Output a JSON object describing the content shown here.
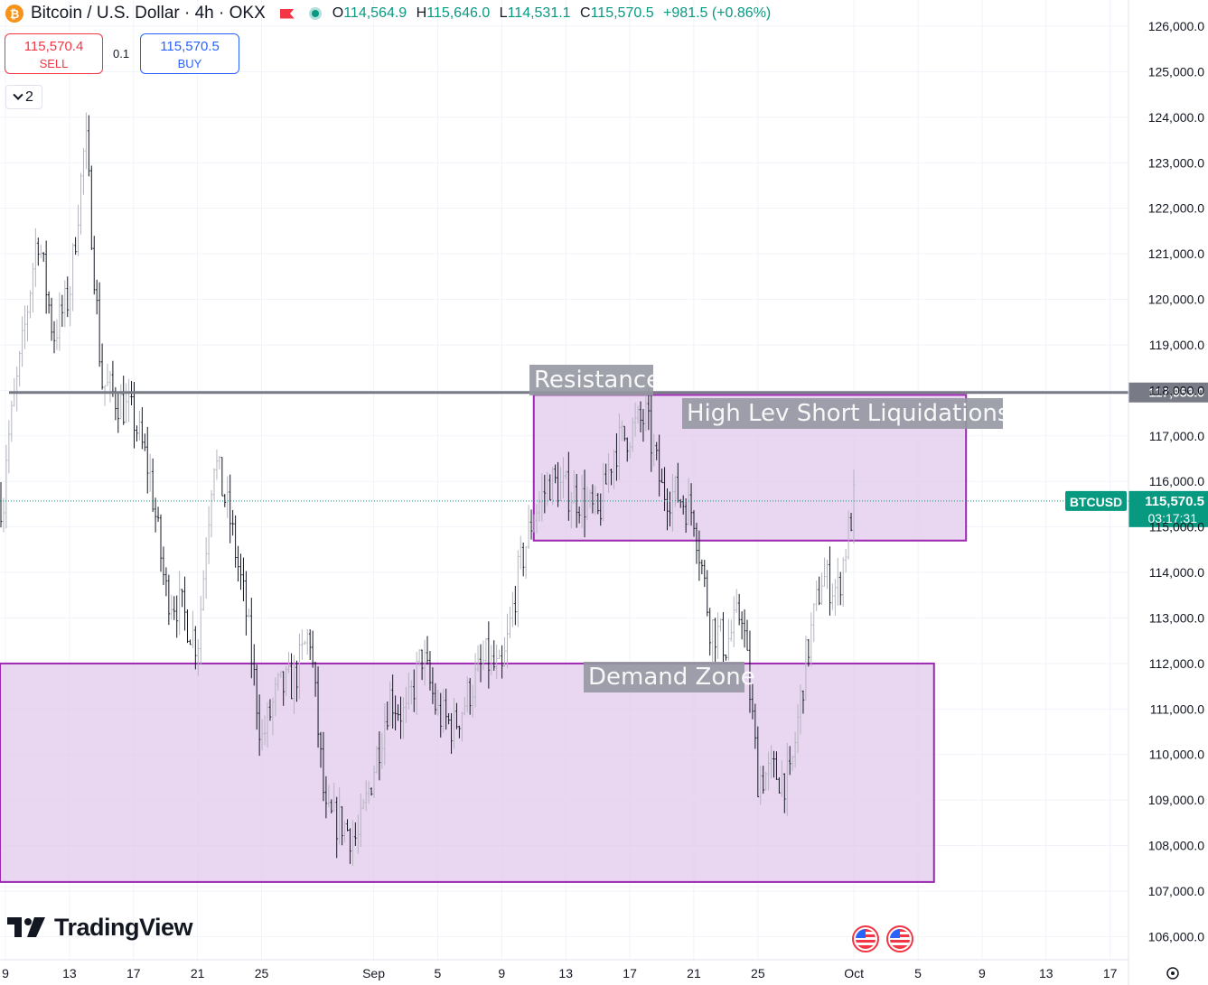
{
  "header": {
    "symbol_title": "Bitcoin / U.S. Dollar · 4h · OKX",
    "coin_symbol": "₿",
    "ohlc": {
      "open_label": "O",
      "open": "114,564.9",
      "high_label": "H",
      "high": "115,646.0",
      "low_label": "L",
      "low": "114,531.1",
      "close_label": "C",
      "close": "115,570.5",
      "change": "+981.5 (+0.86%)"
    }
  },
  "trade": {
    "sell_price": "115,570.4",
    "sell_label": "SELL",
    "spread": "0.1",
    "buy_price": "115,570.5",
    "buy_label": "BUY"
  },
  "collapse_count": "2",
  "branding": {
    "logo_text": "TradingView"
  },
  "colors": {
    "up": "#089981",
    "down": "#f23645",
    "zone_fill": "#e1c8ec",
    "zone_border": "#9c27b0",
    "accent": "#2962ff"
  },
  "icons": [
    "bitcoin-icon",
    "flag-icon",
    "market-status-icon",
    "chevron-down-icon",
    "tradingview-logo-icon",
    "us-flag-icon",
    "settings-icon"
  ],
  "chart_data": {
    "type": "candlestick",
    "symbol": "BTCUSD",
    "timeframe": "4h",
    "ylim": [
      105600,
      126300
    ],
    "yticks": [
      106000,
      107000,
      108000,
      109000,
      110000,
      111000,
      112000,
      113000,
      114000,
      115000,
      116000,
      117000,
      118000,
      119000,
      120000,
      121000,
      122000,
      123000,
      124000,
      125000,
      126000
    ],
    "ytick_labels": [
      "106,000.0",
      "107,000.0",
      "108,000.0",
      "109,000.0",
      "110,000.0",
      "111,000.0",
      "112,000.0",
      "113,000.0",
      "114,000.0",
      "115,000.0",
      "116,000.0",
      "117,000.0",
      "118,000.0",
      "119,000.0",
      "120,000.0",
      "121,000.0",
      "122,000.0",
      "123,000.0",
      "124,000.0",
      "125,000.0",
      "126,000.0"
    ],
    "xtick_labels": [
      "9",
      "13",
      "17",
      "21",
      "25",
      "Sep",
      "5",
      "9",
      "13",
      "17",
      "21",
      "25",
      "Oct",
      "5",
      "9",
      "13",
      "17"
    ],
    "price_path": [
      {
        "date": "2025-08-09",
        "price": 116500
      },
      {
        "date": "2025-08-10",
        "price": 118800
      },
      {
        "date": "2025-08-11",
        "price": 121500
      },
      {
        "date": "2025-08-12",
        "price": 119200
      },
      {
        "date": "2025-08-13",
        "price": 120100
      },
      {
        "date": "2025-08-14",
        "price": 123600
      },
      {
        "date": "2025-08-15",
        "price": 118200
      },
      {
        "date": "2025-08-16",
        "price": 117800
      },
      {
        "date": "2025-08-17",
        "price": 117400
      },
      {
        "date": "2025-08-18",
        "price": 116200
      },
      {
        "date": "2025-08-19",
        "price": 113600
      },
      {
        "date": "2025-08-20",
        "price": 113200
      },
      {
        "date": "2025-08-21",
        "price": 112400
      },
      {
        "date": "2025-08-22",
        "price": 116600
      },
      {
        "date": "2025-08-23",
        "price": 115200
      },
      {
        "date": "2025-08-24",
        "price": 113200
      },
      {
        "date": "2025-08-25",
        "price": 110300
      },
      {
        "date": "2025-08-26",
        "price": 111400
      },
      {
        "date": "2025-08-27",
        "price": 111600
      },
      {
        "date": "2025-08-28",
        "price": 112700
      },
      {
        "date": "2025-08-29",
        "price": 108600
      },
      {
        "date": "2025-08-30",
        "price": 108500
      },
      {
        "date": "2025-08-31",
        "price": 108100
      },
      {
        "date": "2025-09-01",
        "price": 109700
      },
      {
        "date": "2025-09-02",
        "price": 111300
      },
      {
        "date": "2025-09-03",
        "price": 110800
      },
      {
        "date": "2025-09-04",
        "price": 112200
      },
      {
        "date": "2025-09-05",
        "price": 110900
      },
      {
        "date": "2025-09-06",
        "price": 110600
      },
      {
        "date": "2025-09-07",
        "price": 111400
      },
      {
        "date": "2025-09-08",
        "price": 112100
      },
      {
        "date": "2025-09-09",
        "price": 111700
      },
      {
        "date": "2025-09-10",
        "price": 113900
      },
      {
        "date": "2025-09-11",
        "price": 115300
      },
      {
        "date": "2025-09-12",
        "price": 116000
      },
      {
        "date": "2025-09-13",
        "price": 115800
      },
      {
        "date": "2025-09-14",
        "price": 115600
      },
      {
        "date": "2025-09-15",
        "price": 115200
      },
      {
        "date": "2025-09-16",
        "price": 116700
      },
      {
        "date": "2025-09-17",
        "price": 117100
      },
      {
        "date": "2025-09-18",
        "price": 117400
      },
      {
        "date": "2025-09-19",
        "price": 115800
      },
      {
        "date": "2025-09-20",
        "price": 115700
      },
      {
        "date": "2025-09-21",
        "price": 115300
      },
      {
        "date": "2025-09-22",
        "price": 112900
      },
      {
        "date": "2025-09-23",
        "price": 112400
      },
      {
        "date": "2025-09-24",
        "price": 113200
      },
      {
        "date": "2025-09-25",
        "price": 109500
      },
      {
        "date": "2025-09-26",
        "price": 109600
      },
      {
        "date": "2025-09-27",
        "price": 109400
      },
      {
        "date": "2025-09-28",
        "price": 112100
      },
      {
        "date": "2025-09-29",
        "price": 113900
      },
      {
        "date": "2025-09-30",
        "price": 113600
      },
      {
        "date": "2025-10-01",
        "price": 115570
      }
    ],
    "horizontal_line": {
      "price": 117953,
      "label": "117,953.0",
      "note": "Resistance"
    },
    "current_price": {
      "symbol": "BTCUSD",
      "price_label": "115,570.5",
      "countdown": "03:17:31",
      "price": 115570.5
    },
    "zones": [
      {
        "name": "High Lev Short Liquidations",
        "price_top": 117900,
        "price_bottom": 114700,
        "date_start": "2025-09-11",
        "date_end": "2025-10-08"
      },
      {
        "name": "Demand Zone",
        "price_top": 112000,
        "price_bottom": 107200,
        "date_start": "2025-08-05",
        "date_end": "2025-10-06"
      }
    ]
  }
}
